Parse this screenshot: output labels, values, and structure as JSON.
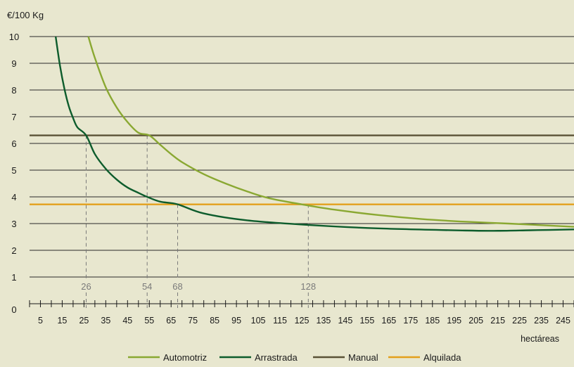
{
  "chart_data": {
    "type": "line",
    "ylabel": "€/100 Kg",
    "xlabel": "hectáreas",
    "xlim": [
      0,
      250
    ],
    "ylim": [
      0,
      10
    ],
    "y_ticks": [
      "0",
      "1",
      "2",
      "3",
      "4",
      "5",
      "6",
      "7",
      "8",
      "9",
      "10"
    ],
    "x_ticks": [
      "5",
      "15",
      "25",
      "35",
      "45",
      "55",
      "65",
      "75",
      "85",
      "95",
      "105",
      "115",
      "125",
      "135",
      "145",
      "155",
      "165",
      "175",
      "185",
      "195",
      "205",
      "215",
      "225",
      "235",
      "245"
    ],
    "grid": "horizontal",
    "legend_position": "bottom",
    "series": [
      {
        "name": "Automotriz",
        "color": "#8aa832",
        "x": [
          27,
          30,
          35,
          40,
          45,
          50,
          55,
          60,
          65,
          70,
          80,
          90,
          100,
          110,
          125,
          140,
          160,
          180,
          200,
          220,
          240,
          250
        ],
        "y": [
          10,
          9.2,
          8.1,
          7.35,
          6.8,
          6.4,
          6.3,
          5.95,
          5.6,
          5.3,
          4.85,
          4.5,
          4.2,
          3.95,
          3.72,
          3.52,
          3.32,
          3.17,
          3.07,
          3.0,
          2.92,
          2.88
        ]
      },
      {
        "name": "Arrastrada",
        "color": "#0d5c2c",
        "x": [
          12,
          14,
          16,
          18,
          20,
          22,
          26,
          30,
          35,
          40,
          45,
          50,
          54,
          60,
          68,
          80,
          100,
          128,
          160,
          200,
          215,
          230,
          250
        ],
        "y": [
          10,
          8.9,
          8.05,
          7.4,
          6.95,
          6.6,
          6.3,
          5.6,
          5.05,
          4.65,
          4.35,
          4.15,
          4.0,
          3.82,
          3.72,
          3.38,
          3.12,
          2.95,
          2.82,
          2.74,
          2.73,
          2.75,
          2.78
        ]
      },
      {
        "name": "Manual",
        "color": "#5a5236",
        "x": [
          0,
          250
        ],
        "y": [
          6.3,
          6.3
        ]
      },
      {
        "name": "Alquilada",
        "color": "#e3a01c",
        "x": [
          0,
          250
        ],
        "y": [
          3.72,
          3.72
        ]
      }
    ],
    "annotations": [
      {
        "label": "26",
        "x": 26,
        "y": 6.3
      },
      {
        "label": "54",
        "x": 54,
        "y": 6.3
      },
      {
        "label": "68",
        "x": 68,
        "y": 3.72
      },
      {
        "label": "128",
        "x": 128,
        "y": 3.72
      }
    ]
  }
}
